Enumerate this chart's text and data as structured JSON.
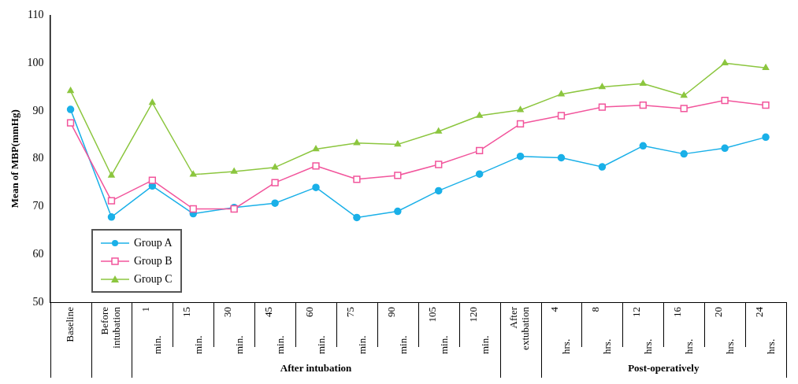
{
  "chart_data": {
    "type": "line",
    "ylabel": "Mean of MBP(mmHg)",
    "categories": [
      "Baseline",
      "Before intubation",
      "1 min.",
      "15 min.",
      "30 min.",
      "45 min.",
      "60 min.",
      "75 min.",
      "90 min.",
      "105 min.",
      "120 min.",
      "After extubation",
      "4 hrs.",
      "8 hrs.",
      "12 hrs.",
      "16 hrs.",
      "20 hrs.",
      "24 hrs."
    ],
    "series": [
      {
        "name": "Group A",
        "color": "#1ab0e8",
        "marker": "circle",
        "values": [
          90.3,
          67.8,
          74.3,
          68.5,
          69.8,
          70.7,
          74,
          67.7,
          69,
          73.3,
          76.8,
          80.5,
          80.2,
          78.3,
          82.7,
          81,
          82.2,
          84.5
        ]
      },
      {
        "name": "Group B",
        "color": "#f2559c",
        "marker": "square",
        "values": [
          87.5,
          71.2,
          75.5,
          69.5,
          69.5,
          75,
          78.5,
          75.7,
          76.5,
          78.8,
          81.7,
          87.3,
          89,
          90.8,
          91.2,
          90.5,
          92.2,
          91.2
        ]
      },
      {
        "name": "Group C",
        "color": "#8cc63f",
        "marker": "triangle",
        "values": [
          94.2,
          76.5,
          91.7,
          76.7,
          77.3,
          78.2,
          82,
          83.3,
          83,
          85.7,
          89,
          90.2,
          93.5,
          95,
          95.7,
          93.2,
          100,
          99
        ]
      }
    ],
    "annotations": [
      "After intubation",
      "Post-operatively"
    ],
    "ylim": [
      50,
      110
    ],
    "yticks": [
      50,
      60,
      70,
      80,
      90,
      100,
      110
    ],
    "grid": false,
    "legend": "bottom left"
  }
}
